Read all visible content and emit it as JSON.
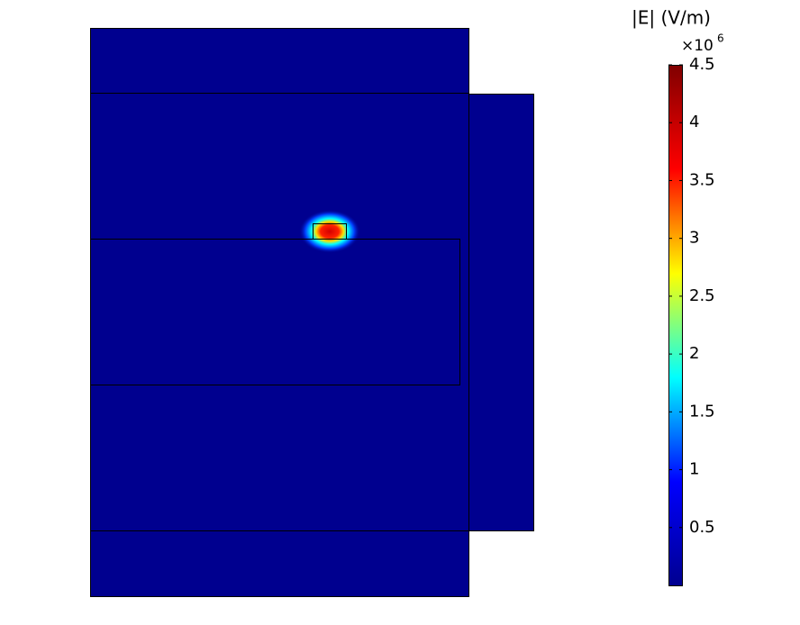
{
  "chart_data": {
    "type": "field",
    "title": "|E| (V/m)",
    "multiplier": {
      "base": "×10",
      "exponent": "6"
    },
    "colormap": [
      "#00008f",
      "#0000ff",
      "#00ffff",
      "#ffff00",
      "#ff0000",
      "#800000"
    ],
    "zlim": [
      0,
      4.5
    ],
    "zticks": [
      0.5,
      1,
      1.5,
      2,
      2.5,
      3,
      3.5,
      4,
      4.5
    ]
  }
}
